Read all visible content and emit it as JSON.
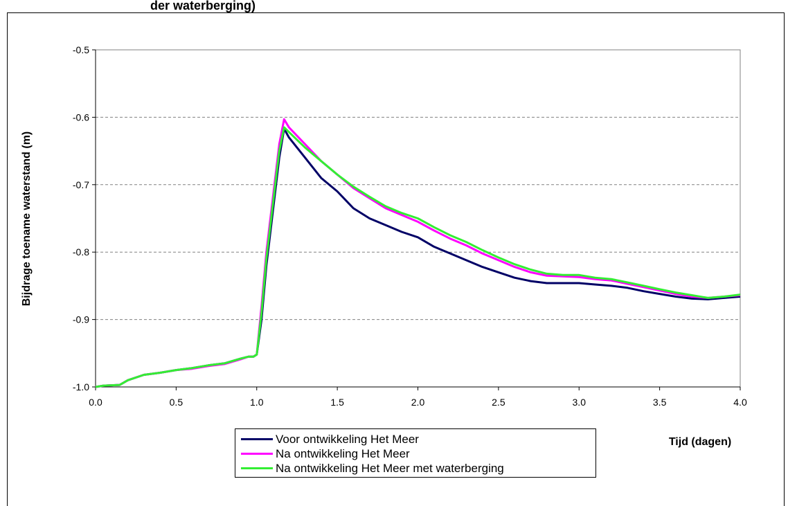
{
  "title_fragment": "der waterberging)",
  "chart_data": {
    "type": "line",
    "title": "der waterberging)",
    "xlabel": "Tijd (dagen)",
    "ylabel": "Bijdrage toename waterstand (m)",
    "xlim": [
      0.0,
      4.0
    ],
    "ylim": [
      -1.0,
      -0.5
    ],
    "xticks": [
      "0.0",
      "0.5",
      "1.0",
      "1.5",
      "2.0",
      "2.5",
      "3.0",
      "3.5",
      "4.0"
    ],
    "yticks": [
      "-0.5",
      "-0.6",
      "-0.7",
      "-0.8",
      "-0.9",
      "-1.0"
    ],
    "grid": "horizontal dashed",
    "legend_position": "bottom-center",
    "series": [
      {
        "name": "Voor ontwikkeling Het Meer",
        "color": "#000066",
        "points": [
          [
            0.0,
            -1.0
          ],
          [
            0.05,
            -0.998
          ],
          [
            0.15,
            -0.997
          ],
          [
            0.2,
            -0.99
          ],
          [
            0.3,
            -0.982
          ],
          [
            0.4,
            -0.979
          ],
          [
            0.5,
            -0.975
          ],
          [
            0.6,
            -0.972
          ],
          [
            0.7,
            -0.968
          ],
          [
            0.8,
            -0.965
          ],
          [
            0.9,
            -0.958
          ],
          [
            0.95,
            -0.955
          ],
          [
            0.98,
            -0.955
          ],
          [
            1.0,
            -0.952
          ],
          [
            1.03,
            -0.9
          ],
          [
            1.06,
            -0.82
          ],
          [
            1.1,
            -0.74
          ],
          [
            1.14,
            -0.66
          ],
          [
            1.17,
            -0.617
          ],
          [
            1.2,
            -0.63
          ],
          [
            1.3,
            -0.66
          ],
          [
            1.4,
            -0.69
          ],
          [
            1.5,
            -0.71
          ],
          [
            1.6,
            -0.735
          ],
          [
            1.7,
            -0.75
          ],
          [
            1.8,
            -0.76
          ],
          [
            1.9,
            -0.77
          ],
          [
            2.0,
            -0.778
          ],
          [
            2.1,
            -0.792
          ],
          [
            2.2,
            -0.802
          ],
          [
            2.3,
            -0.812
          ],
          [
            2.4,
            -0.822
          ],
          [
            2.5,
            -0.83
          ],
          [
            2.6,
            -0.838
          ],
          [
            2.7,
            -0.843
          ],
          [
            2.8,
            -0.846
          ],
          [
            2.9,
            -0.846
          ],
          [
            3.0,
            -0.846
          ],
          [
            3.1,
            -0.848
          ],
          [
            3.2,
            -0.85
          ],
          [
            3.3,
            -0.853
          ],
          [
            3.4,
            -0.858
          ],
          [
            3.5,
            -0.862
          ],
          [
            3.6,
            -0.866
          ],
          [
            3.7,
            -0.869
          ],
          [
            3.8,
            -0.87
          ],
          [
            3.9,
            -0.868
          ],
          [
            4.0,
            -0.866
          ]
        ]
      },
      {
        "name": "Na ontwikkeling Het Meer",
        "color": "#ff00ff",
        "points": [
          [
            0.0,
            -1.0
          ],
          [
            0.05,
            -0.998
          ],
          [
            0.15,
            -0.997
          ],
          [
            0.2,
            -0.99
          ],
          [
            0.3,
            -0.982
          ],
          [
            0.4,
            -0.979
          ],
          [
            0.5,
            -0.975
          ],
          [
            0.6,
            -0.973
          ],
          [
            0.7,
            -0.969
          ],
          [
            0.8,
            -0.966
          ],
          [
            0.9,
            -0.959
          ],
          [
            0.95,
            -0.955
          ],
          [
            0.98,
            -0.955
          ],
          [
            1.0,
            -0.952
          ],
          [
            1.03,
            -0.88
          ],
          [
            1.06,
            -0.8
          ],
          [
            1.1,
            -0.72
          ],
          [
            1.14,
            -0.64
          ],
          [
            1.17,
            -0.603
          ],
          [
            1.2,
            -0.615
          ],
          [
            1.3,
            -0.64
          ],
          [
            1.4,
            -0.665
          ],
          [
            1.5,
            -0.685
          ],
          [
            1.6,
            -0.705
          ],
          [
            1.7,
            -0.72
          ],
          [
            1.8,
            -0.735
          ],
          [
            1.9,
            -0.745
          ],
          [
            2.0,
            -0.755
          ],
          [
            2.1,
            -0.768
          ],
          [
            2.2,
            -0.78
          ],
          [
            2.3,
            -0.79
          ],
          [
            2.4,
            -0.802
          ],
          [
            2.5,
            -0.812
          ],
          [
            2.6,
            -0.822
          ],
          [
            2.7,
            -0.83
          ],
          [
            2.8,
            -0.835
          ],
          [
            2.9,
            -0.836
          ],
          [
            3.0,
            -0.837
          ],
          [
            3.1,
            -0.84
          ],
          [
            3.2,
            -0.842
          ],
          [
            3.3,
            -0.847
          ],
          [
            3.4,
            -0.852
          ],
          [
            3.5,
            -0.857
          ],
          [
            3.6,
            -0.862
          ],
          [
            3.7,
            -0.866
          ],
          [
            3.8,
            -0.868
          ],
          [
            3.9,
            -0.866
          ],
          [
            4.0,
            -0.864
          ]
        ]
      },
      {
        "name": "Na ontwikkeling Het Meer met waterberging",
        "color": "#33ee33",
        "points": [
          [
            0.0,
            -1.0
          ],
          [
            0.05,
            -0.998
          ],
          [
            0.15,
            -0.997
          ],
          [
            0.2,
            -0.99
          ],
          [
            0.3,
            -0.982
          ],
          [
            0.4,
            -0.979
          ],
          [
            0.5,
            -0.975
          ],
          [
            0.6,
            -0.972
          ],
          [
            0.7,
            -0.968
          ],
          [
            0.8,
            -0.965
          ],
          [
            0.9,
            -0.958
          ],
          [
            0.95,
            -0.955
          ],
          [
            0.98,
            -0.955
          ],
          [
            1.0,
            -0.952
          ],
          [
            1.03,
            -0.89
          ],
          [
            1.06,
            -0.81
          ],
          [
            1.1,
            -0.73
          ],
          [
            1.14,
            -0.65
          ],
          [
            1.17,
            -0.615
          ],
          [
            1.2,
            -0.622
          ],
          [
            1.3,
            -0.645
          ],
          [
            1.4,
            -0.665
          ],
          [
            1.5,
            -0.685
          ],
          [
            1.6,
            -0.703
          ],
          [
            1.7,
            -0.718
          ],
          [
            1.8,
            -0.732
          ],
          [
            1.9,
            -0.742
          ],
          [
            2.0,
            -0.75
          ],
          [
            2.1,
            -0.763
          ],
          [
            2.2,
            -0.775
          ],
          [
            2.3,
            -0.785
          ],
          [
            2.4,
            -0.797
          ],
          [
            2.5,
            -0.808
          ],
          [
            2.6,
            -0.818
          ],
          [
            2.7,
            -0.826
          ],
          [
            2.8,
            -0.832
          ],
          [
            2.9,
            -0.834
          ],
          [
            3.0,
            -0.834
          ],
          [
            3.1,
            -0.838
          ],
          [
            3.2,
            -0.84
          ],
          [
            3.3,
            -0.845
          ],
          [
            3.4,
            -0.85
          ],
          [
            3.5,
            -0.855
          ],
          [
            3.6,
            -0.86
          ],
          [
            3.7,
            -0.864
          ],
          [
            3.8,
            -0.868
          ],
          [
            3.9,
            -0.866
          ],
          [
            4.0,
            -0.863
          ]
        ]
      }
    ]
  }
}
